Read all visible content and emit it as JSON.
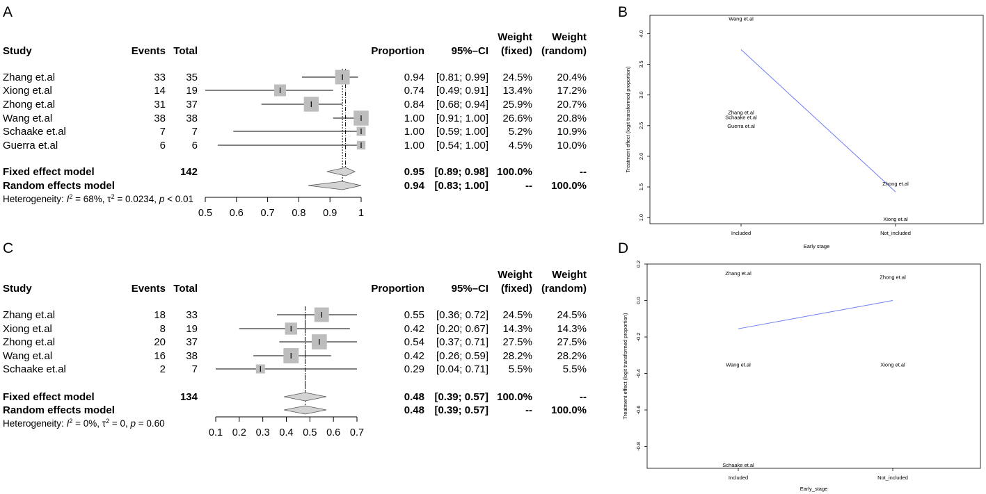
{
  "chart_data": [
    {
      "type": "forest",
      "panel": "A",
      "headers": {
        "study": "Study",
        "events": "Events",
        "total": "Total",
        "proportion": "Proportion",
        "ci": "95%–CI",
        "weight_fixed_1": "Weight",
        "weight_fixed_2": "(fixed)",
        "weight_random_1": "Weight",
        "weight_random_2": "(random)"
      },
      "axis": {
        "min": 0.5,
        "max": 1.0,
        "ticks": [
          0.5,
          0.6,
          0.7,
          0.8,
          0.9,
          1.0
        ],
        "tick_labels": [
          "0.5",
          "0.6",
          "0.7",
          "0.8",
          "0.9",
          "1"
        ]
      },
      "studies": [
        {
          "name": "Zhang et.al",
          "events": "33",
          "total": "35",
          "prop": 0.94,
          "lo": 0.81,
          "hi": 0.99,
          "prop_s": "0.94",
          "ci_s": "[0.81; 0.99]",
          "wf": "24.5%",
          "wr": "20.4%",
          "w": 24.5
        },
        {
          "name": "Xiong et.al",
          "events": "14",
          "total": "19",
          "prop": 0.74,
          "lo": 0.49,
          "hi": 0.91,
          "prop_s": "0.74",
          "ci_s": "[0.49; 0.91]",
          "wf": "13.4%",
          "wr": "17.2%",
          "w": 13.4
        },
        {
          "name": "Zhong et.al",
          "events": "31",
          "total": "37",
          "prop": 0.84,
          "lo": 0.68,
          "hi": 0.94,
          "prop_s": "0.84",
          "ci_s": "[0.68; 0.94]",
          "wf": "25.9%",
          "wr": "20.7%",
          "w": 25.9
        },
        {
          "name": "Wang et.al",
          "events": "38",
          "total": "38",
          "prop": 1.0,
          "lo": 0.91,
          "hi": 1.0,
          "prop_s": "1.00",
          "ci_s": "[0.91; 1.00]",
          "wf": "26.6%",
          "wr": "20.8%",
          "w": 26.6
        },
        {
          "name": "Schaake et.al",
          "events": "7",
          "total": "7",
          "prop": 1.0,
          "lo": 0.59,
          "hi": 1.0,
          "prop_s": "1.00",
          "ci_s": "[0.59; 1.00]",
          "wf": "5.2%",
          "wr": "10.9%",
          "w": 5.2
        },
        {
          "name": "Guerra et.al",
          "events": "6",
          "total": "6",
          "prop": 1.0,
          "lo": 0.54,
          "hi": 1.0,
          "prop_s": "1.00",
          "ci_s": "[0.54; 1.00]",
          "wf": "4.5%",
          "wr": "10.0%",
          "w": 4.5
        }
      ],
      "fixed": {
        "name": "Fixed effect model",
        "total": "142",
        "prop": 0.95,
        "lo": 0.89,
        "hi": 0.98,
        "prop_s": "0.95",
        "ci_s": "[0.89; 0.98]",
        "wf": "100.0%",
        "wr": "--"
      },
      "random": {
        "name": "Random effects model",
        "prop": 0.94,
        "lo": 0.83,
        "hi": 1.0,
        "prop_s": "0.94",
        "ci_s": "[0.83; 1.00]",
        "wf": "--",
        "wr": "100.0%"
      },
      "heterogeneity": {
        "prefix": "Heterogeneity: ",
        "I": "I",
        "I_sup": "2",
        "I_val": " = 68%, ",
        "tau": "τ",
        "tau_sup": "2",
        "tau_val": " = 0.0234, ",
        "p": "p",
        "p_val": " < 0.01"
      }
    },
    {
      "type": "forest",
      "panel": "C",
      "headers": {
        "study": "Study",
        "events": "Events",
        "total": "Total",
        "proportion": "Proportion",
        "ci": "95%–CI",
        "weight_fixed_1": "Weight",
        "weight_fixed_2": "(fixed)",
        "weight_random_1": "Weight",
        "weight_random_2": "(random)"
      },
      "axis": {
        "min": 0.1,
        "max": 0.7,
        "ticks": [
          0.1,
          0.2,
          0.3,
          0.4,
          0.5,
          0.6,
          0.7
        ],
        "tick_labels": [
          "0.1",
          "0.2",
          "0.3",
          "0.4",
          "0.5",
          "0.6",
          "0.7"
        ]
      },
      "studies": [
        {
          "name": "Zhang et.al",
          "events": "18",
          "total": "33",
          "prop": 0.55,
          "lo": 0.36,
          "hi": 0.72,
          "prop_s": "0.55",
          "ci_s": "[0.36; 0.72]",
          "wf": "24.5%",
          "wr": "24.5%",
          "w": 24.5
        },
        {
          "name": "Xiong et.al",
          "events": "8",
          "total": "19",
          "prop": 0.42,
          "lo": 0.2,
          "hi": 0.67,
          "prop_s": "0.42",
          "ci_s": "[0.20; 0.67]",
          "wf": "14.3%",
          "wr": "14.3%",
          "w": 14.3
        },
        {
          "name": "Zhong et.al",
          "events": "20",
          "total": "37",
          "prop": 0.54,
          "lo": 0.37,
          "hi": 0.71,
          "prop_s": "0.54",
          "ci_s": "[0.37; 0.71]",
          "wf": "27.5%",
          "wr": "27.5%",
          "w": 27.5
        },
        {
          "name": "Wang et.al",
          "events": "16",
          "total": "38",
          "prop": 0.42,
          "lo": 0.26,
          "hi": 0.59,
          "prop_s": "0.42",
          "ci_s": "[0.26; 0.59]",
          "wf": "28.2%",
          "wr": "28.2%",
          "w": 28.2
        },
        {
          "name": "Schaake et.al",
          "events": "2",
          "total": "7",
          "prop": 0.29,
          "lo": 0.04,
          "hi": 0.71,
          "prop_s": "0.29",
          "ci_s": "[0.04; 0.71]",
          "wf": "5.5%",
          "wr": "5.5%",
          "w": 5.5
        }
      ],
      "fixed": {
        "name": "Fixed effect model",
        "total": "134",
        "prop": 0.48,
        "lo": 0.39,
        "hi": 0.57,
        "prop_s": "0.48",
        "ci_s": "[0.39; 0.57]",
        "wf": "100.0%",
        "wr": "--"
      },
      "random": {
        "name": "Random effects model",
        "prop": 0.48,
        "lo": 0.39,
        "hi": 0.57,
        "prop_s": "0.48",
        "ci_s": "[0.39; 0.57]",
        "wf": "--",
        "wr": "100.0%"
      },
      "heterogeneity": {
        "prefix": "Heterogeneity: ",
        "I": "I",
        "I_sup": "2",
        "I_val": " = 0%, ",
        "tau": "τ",
        "tau_sup": "2",
        "tau_val": " = 0, ",
        "p": "p",
        "p_val": " = 0.60"
      }
    },
    {
      "type": "line",
      "panel": "B",
      "xlabel": "Early stage",
      "ylabel": "Treatment effect (logit transformed proportion)",
      "categories": [
        "Included",
        "Not_included"
      ],
      "ylim": [
        0.9,
        4.3
      ],
      "yticks": [
        "1.0",
        "1.5",
        "2.0",
        "2.5",
        "3.0",
        "3.5",
        "4.0"
      ],
      "line": {
        "x": [
          "Included",
          "Not_included"
        ],
        "y": [
          3.74,
          1.42
        ],
        "color": "#6e7cf2"
      },
      "labels": [
        {
          "text": "Wang et.al",
          "x": "Included",
          "y": 4.25
        },
        {
          "text": "Zhang et.al",
          "x": "Included",
          "y": 2.72
        },
        {
          "text": "Schaake et.al",
          "x": "Included",
          "y": 2.64
        },
        {
          "text": "Guerra et.al",
          "x": "Included",
          "y": 2.5
        },
        {
          "text": "Zhong et.al",
          "x": "Not_included",
          "y": 1.56
        },
        {
          "text": "Xiong et.al",
          "x": "Not_included",
          "y": 0.98
        }
      ]
    },
    {
      "type": "line",
      "panel": "D",
      "xlabel": "Early_stage",
      "ylabel": "Treatment effect (logit transformed proportion)",
      "categories": [
        "Included",
        "Not_included"
      ],
      "ylim": [
        -0.92,
        0.2
      ],
      "yticks": [
        "0.2",
        "0.0",
        "-0.2",
        "-0.4",
        "-0.6",
        "-0.8"
      ],
      "line": {
        "x": [
          "Included",
          "Not_included"
        ],
        "y": [
          -0.155,
          0.0
        ],
        "color": "#6e7cf2"
      },
      "labels": [
        {
          "text": "Zhang et.al",
          "x": "Included",
          "y": 0.15
        },
        {
          "text": "Zhong et.al",
          "x": "Not_included",
          "y": 0.13
        },
        {
          "text": "Wang et.al",
          "x": "Included",
          "y": -0.35
        },
        {
          "text": "Xiong et.al",
          "x": "Not_included",
          "y": -0.35
        },
        {
          "text": "Schaake et.al",
          "x": "Included",
          "y": -0.9
        }
      ]
    }
  ],
  "panel_letters": {
    "A": "A",
    "B": "B",
    "C": "C",
    "D": "D"
  }
}
